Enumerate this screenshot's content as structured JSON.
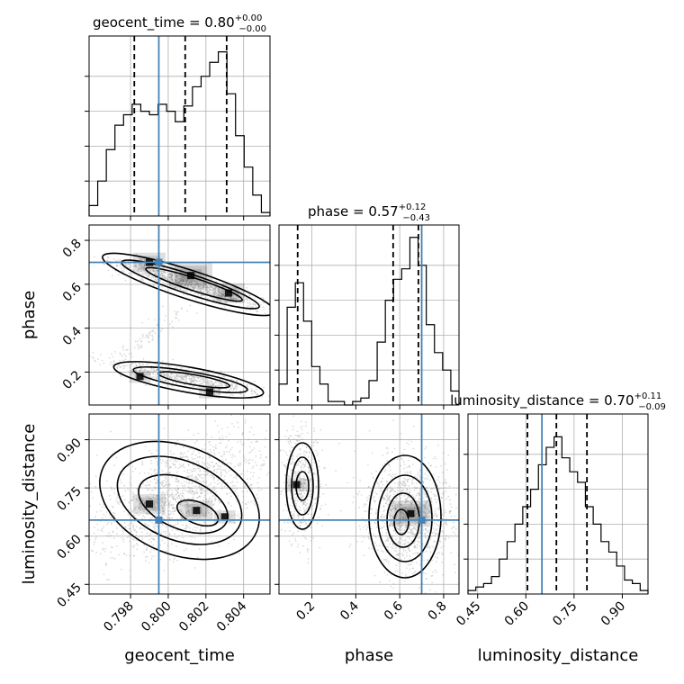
{
  "chart_data": {
    "type": "corner",
    "parameters": [
      "geocent_time",
      "phase",
      "luminosity_distance"
    ],
    "truth": {
      "geocent_time": 0.7995,
      "phase": 0.7,
      "luminosity_distance": 0.65
    },
    "colors": {
      "truth": "#4682b4",
      "hist": "#000000",
      "grid": "#b0b0b0",
      "scatter": "#9a9a9a"
    },
    "grid": true,
    "diagonal": [
      {
        "param": "geocent_time",
        "title_name": "geocent_time",
        "title_value": "0.80",
        "title_plus": "+0.00",
        "title_minus": "−0.00",
        "quantiles": [
          0.7982,
          0.8009,
          0.8031
        ],
        "range": [
          0.7958,
          0.8054
        ],
        "hist_max": 100,
        "hist": [
          6,
          20,
          38,
          52,
          58,
          64,
          60,
          58,
          64,
          60,
          54,
          63,
          74,
          80,
          88,
          94,
          70,
          46,
          28,
          12,
          2
        ]
      },
      {
        "param": "phase",
        "title_name": "phase",
        "title_value": "0.57",
        "title_plus": "+0.12",
        "title_minus": "−0.43",
        "quantiles": [
          0.135,
          0.57,
          0.685
        ],
        "range": [
          0.05,
          0.87
        ],
        "hist_max": 100,
        "hist": [
          12,
          56,
          70,
          48,
          22,
          12,
          2,
          2,
          0,
          2,
          4,
          14,
          36,
          60,
          72,
          78,
          96,
          80,
          46,
          30,
          20,
          8
        ]
      },
      {
        "param": "luminosity_distance",
        "title_name": "luminosity_distance",
        "title_value": "0.70",
        "title_plus": "+0.11",
        "title_minus": "−0.09",
        "quantiles": [
          0.605,
          0.695,
          0.79
        ],
        "range": [
          0.42,
          0.98
        ],
        "hist_max": 100,
        "hist": [
          2,
          4,
          6,
          10,
          20,
          30,
          40,
          50,
          60,
          74,
          84,
          90,
          78,
          70,
          64,
          50,
          40,
          30,
          24,
          16,
          8,
          6,
          2
        ]
      }
    ],
    "axes": {
      "geocent_time": {
        "range": [
          0.7958,
          0.8054
        ],
        "ticks": [
          "0.798",
          "0.800",
          "0.802",
          "0.804"
        ],
        "tick_values": [
          0.798,
          0.8,
          0.802,
          0.804
        ]
      },
      "phase": {
        "range": [
          0.05,
          0.87
        ],
        "ticks": [
          "0.2",
          "0.4",
          "0.6",
          "0.8"
        ],
        "tick_values": [
          0.2,
          0.4,
          0.6,
          0.8
        ]
      },
      "luminosity_distance": {
        "range": [
          0.42,
          0.98
        ],
        "ticks": [
          "0.45",
          "0.60",
          "0.75",
          "0.90"
        ],
        "tick_values": [
          0.45,
          0.6,
          0.75,
          0.9
        ]
      }
    },
    "xlabels": [
      "geocent_time",
      "phase",
      "luminosity_distance"
    ],
    "ylabels": [
      "",
      "phase",
      "luminosity_distance"
    ],
    "density_blobs": [
      {
        "panel": "phase_vs_geocent_time",
        "x": 0.799,
        "y": 0.7,
        "w": 3
      },
      {
        "panel": "phase_vs_geocent_time",
        "x": 0.8012,
        "y": 0.64,
        "w": 4
      },
      {
        "panel": "phase_vs_geocent_time",
        "x": 0.8032,
        "y": 0.56,
        "w": 3
      },
      {
        "panel": "phase_vs_geocent_time",
        "x": 0.7985,
        "y": 0.18,
        "w": 2
      },
      {
        "panel": "phase_vs_geocent_time",
        "x": 0.8022,
        "y": 0.11,
        "w": 2
      },
      {
        "panel": "luminosity_distance_vs_geocent_time",
        "x": 0.799,
        "y": 0.7,
        "w": 3
      },
      {
        "panel": "luminosity_distance_vs_geocent_time",
        "x": 0.8015,
        "y": 0.68,
        "w": 3
      },
      {
        "panel": "luminosity_distance_vs_geocent_time",
        "x": 0.803,
        "y": 0.66,
        "w": 2
      },
      {
        "panel": "luminosity_distance_vs_phase",
        "x": 0.13,
        "y": 0.76,
        "w": 2
      },
      {
        "panel": "luminosity_distance_vs_phase",
        "x": 0.65,
        "y": 0.67,
        "w": 4
      }
    ]
  }
}
